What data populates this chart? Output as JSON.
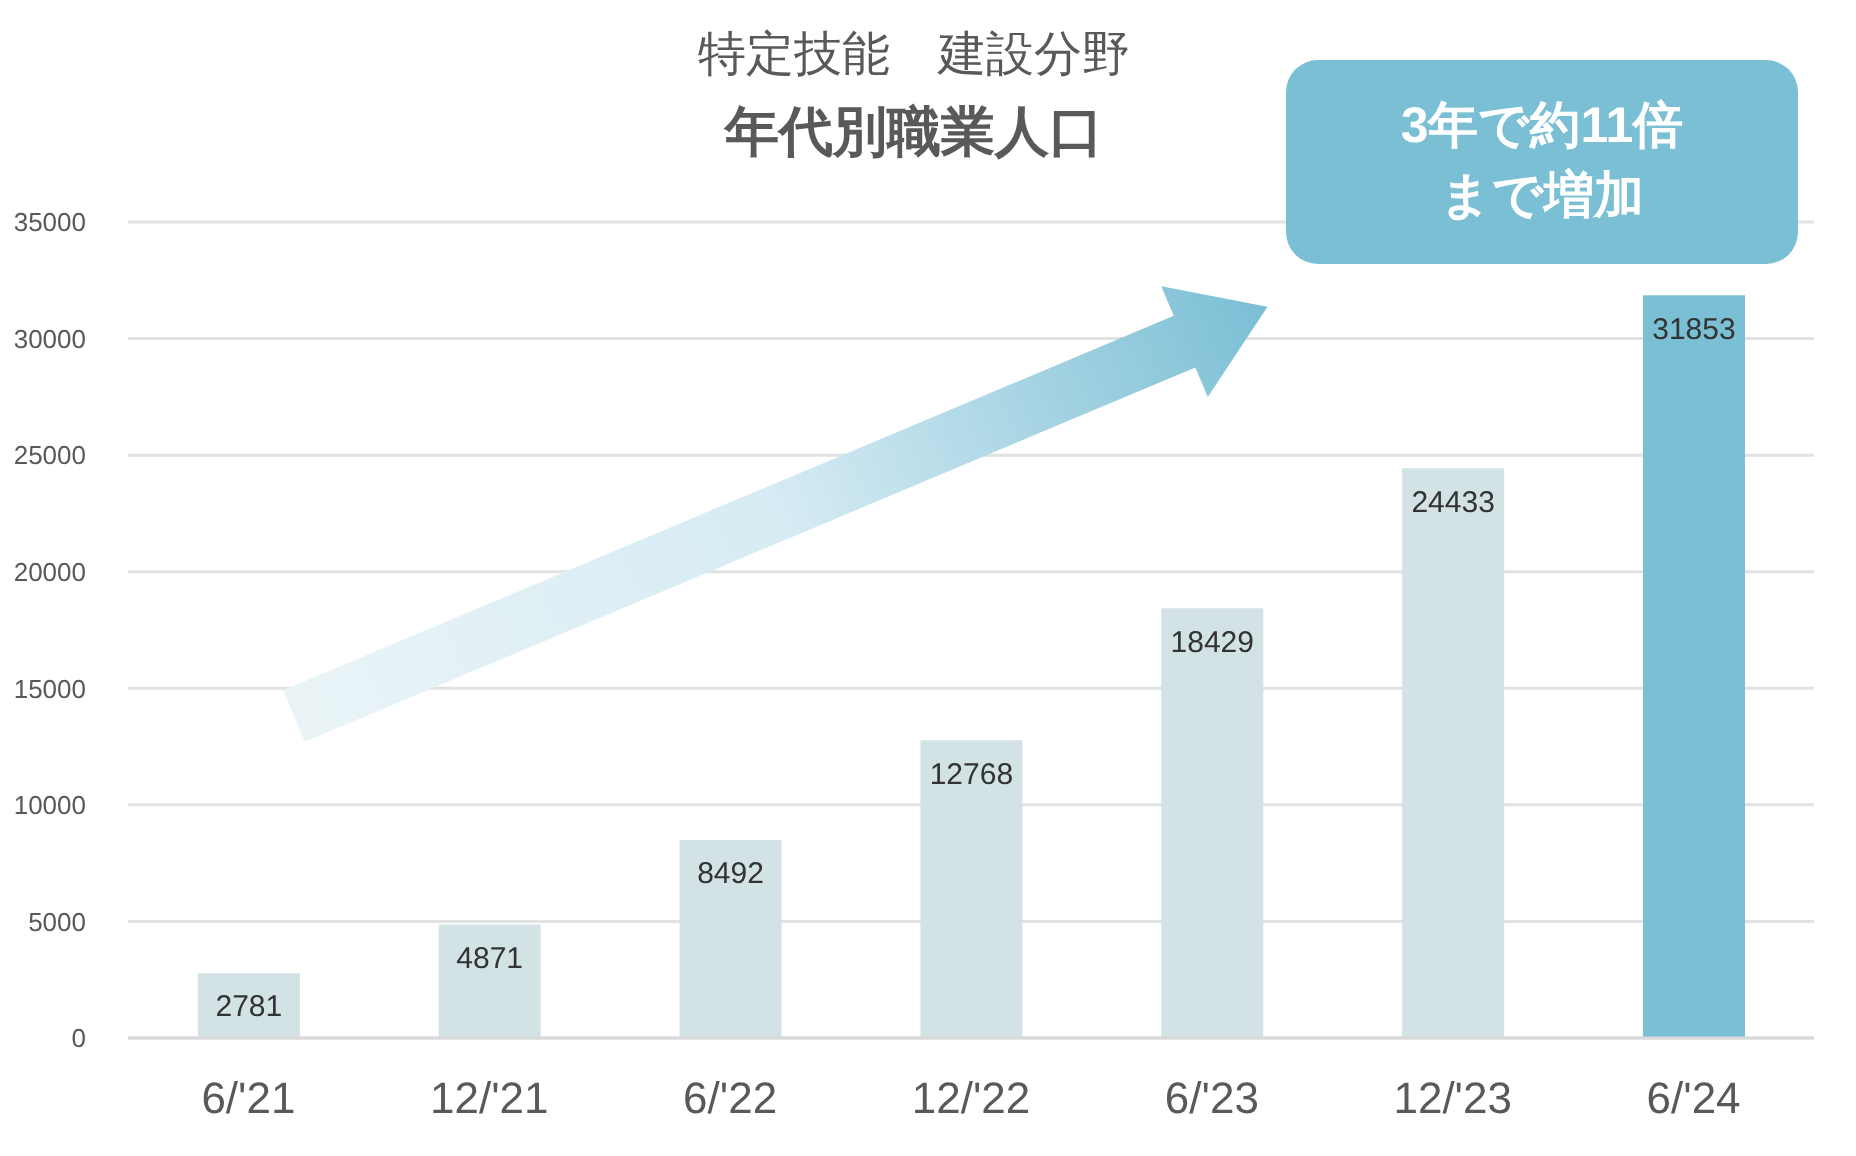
{
  "chart_data": {
    "type": "bar",
    "title": "特定技能　建設分野",
    "subtitle": "年代別職業人口",
    "categories": [
      "6/'21",
      "12/'21",
      "6/'22",
      "12/'22",
      "6/'23",
      "12/'23",
      "6/'24"
    ],
    "values": [
      2781,
      4871,
      8492,
      12768,
      18429,
      24433,
      31853
    ],
    "colors": [
      "#d3e3e5",
      "#d3e3e5",
      "#d3e3e5",
      "#d3e3e5",
      "#d3e3e5",
      "#d3e3e5",
      "#7bbfd5"
    ],
    "ylim": [
      0,
      35000
    ],
    "yticks": [
      0,
      5000,
      10000,
      15000,
      20000,
      25000,
      30000,
      35000
    ],
    "grid": "y",
    "data_labels": true,
    "annotations": [
      "3年で約11倍まで増加"
    ]
  }
}
